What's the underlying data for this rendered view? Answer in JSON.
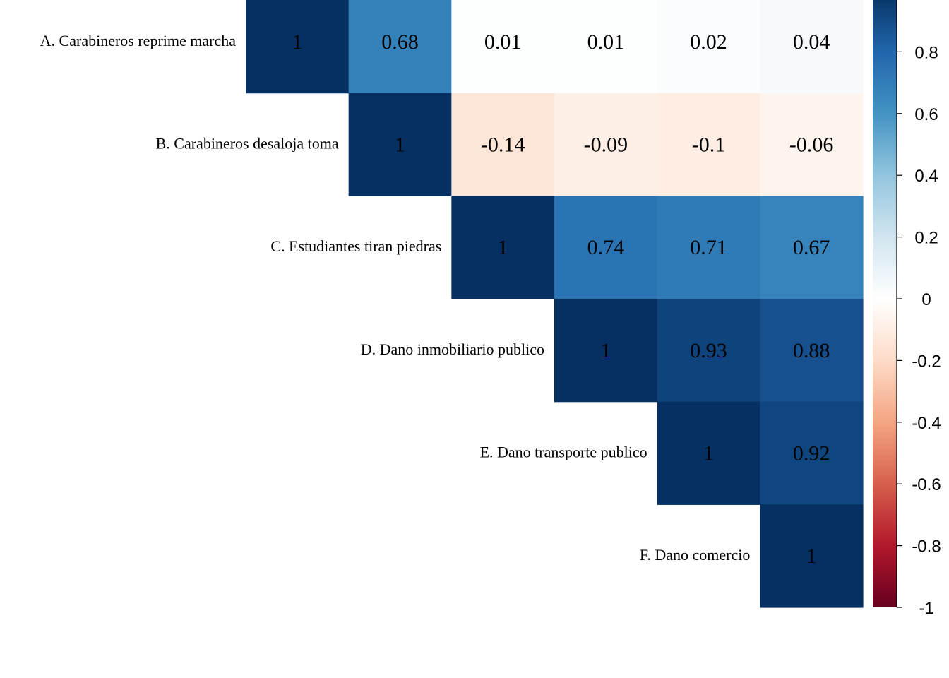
{
  "chart_data": {
    "type": "heatmap",
    "variant": "correlation-matrix-upper-triangle",
    "variables": [
      "A. Carabineros reprime marcha",
      "B. Carabineros desaloja toma",
      "C. Estudiantes tiran piedras",
      "D. Dano inmobiliario publico",
      "E. Dano transporte publico",
      "F. Dano comercio"
    ],
    "matrix": [
      [
        1,
        0.68,
        0.01,
        0.01,
        0.02,
        0.04
      ],
      [
        null,
        1,
        -0.14,
        -0.09,
        -0.1,
        -0.06
      ],
      [
        null,
        null,
        1,
        0.74,
        0.71,
        0.67
      ],
      [
        null,
        null,
        null,
        1,
        0.93,
        0.88
      ],
      [
        null,
        null,
        null,
        null,
        1,
        0.92
      ],
      [
        null,
        null,
        null,
        null,
        null,
        1
      ]
    ],
    "labels": [
      [
        "1",
        "0.68",
        "0.01",
        "0.01",
        "0.02",
        "0.04"
      ],
      [
        null,
        "1",
        "-0.14",
        "-0.09",
        "-0.1",
        "-0.06"
      ],
      [
        null,
        null,
        "1",
        "0.74",
        "0.71",
        "0.67"
      ],
      [
        null,
        null,
        null,
        "1",
        "0.93",
        "0.88"
      ],
      [
        null,
        null,
        null,
        null,
        "1",
        "0.92"
      ],
      [
        null,
        null,
        null,
        null,
        null,
        "1"
      ]
    ],
    "colorbar": {
      "range": [
        -1,
        1
      ],
      "ticks": [
        0.8,
        0.6,
        0.4,
        0.2,
        0,
        -0.2,
        -0.4,
        -0.6,
        -0.8,
        -1
      ],
      "tick_labels": [
        "0.8",
        "0.6",
        "0.4",
        "0.2",
        "0",
        "-0.2",
        "-0.4",
        "-0.6",
        "-0.8",
        "-1"
      ],
      "colors": [
        "#67001f",
        "#b2182b",
        "#d6604d",
        "#f4a582",
        "#fddbc7",
        "#ffffff",
        "#d1e5f0",
        "#92c5de",
        "#4393c3",
        "#2166ac",
        "#053061"
      ]
    }
  }
}
